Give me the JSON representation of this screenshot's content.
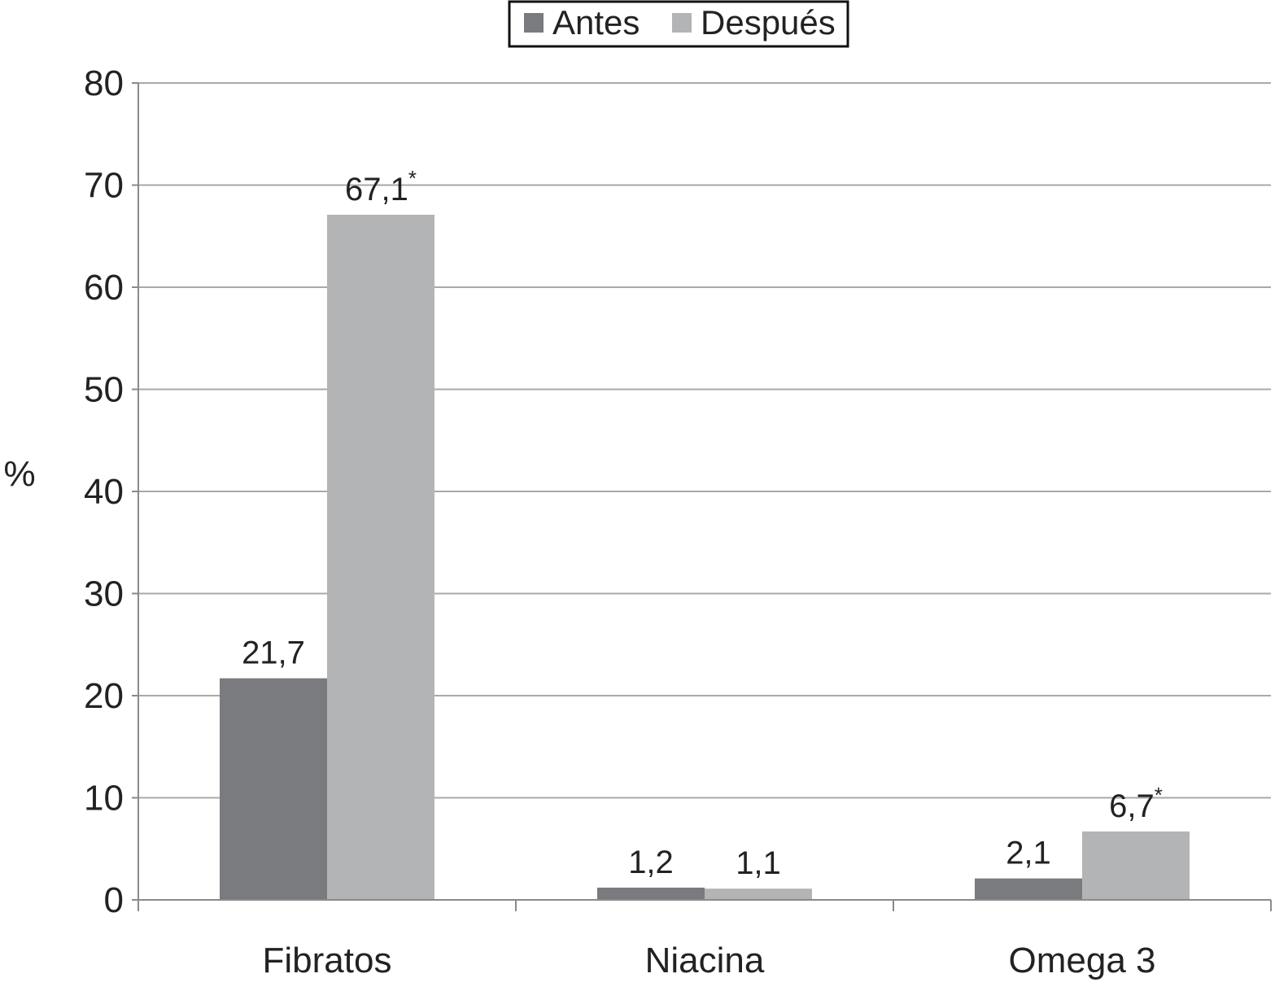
{
  "chart_data": {
    "type": "bar",
    "title": "",
    "xlabel": "",
    "ylabel": "%",
    "ylim": [
      0,
      80
    ],
    "yticks": [
      0,
      10,
      20,
      30,
      40,
      50,
      60,
      70,
      80
    ],
    "grid": true,
    "legend_position": "top-center",
    "categories": [
      "Fibratos",
      "Niacina",
      "Omega 3"
    ],
    "series": [
      {
        "name": "Antes",
        "color": "#7a7b7e",
        "values": [
          21.7,
          1.2,
          2.1
        ],
        "labels": [
          "21,7",
          "1,2",
          "2,1"
        ],
        "significance": [
          "",
          "",
          ""
        ]
      },
      {
        "name": "Después",
        "color": "#b3b4b6",
        "values": [
          67.1,
          1.1,
          6.7
        ],
        "labels": [
          "67,1",
          "1,1",
          "6,7"
        ],
        "significance": [
          "*",
          "",
          "*"
        ]
      }
    ]
  }
}
